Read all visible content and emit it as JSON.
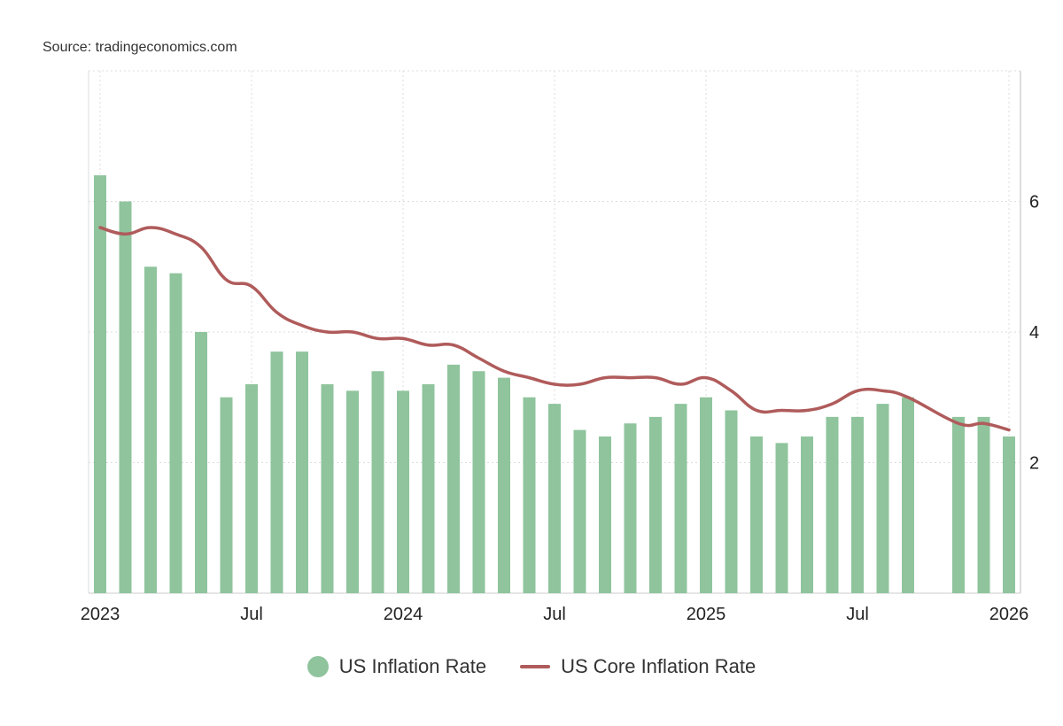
{
  "source": "Source: tradingeconomics.com",
  "chart_data": {
    "type": "bar+line",
    "x": [
      "2023-01",
      "2023-02",
      "2023-03",
      "2023-04",
      "2023-05",
      "2023-06",
      "2023-07",
      "2023-08",
      "2023-09",
      "2023-10",
      "2023-11",
      "2023-12",
      "2024-01",
      "2024-02",
      "2024-03",
      "2024-04",
      "2024-05",
      "2024-06",
      "2024-07",
      "2024-08",
      "2024-09",
      "2024-10",
      "2024-11",
      "2024-12",
      "2025-01",
      "2025-02",
      "2025-03",
      "2025-04",
      "2025-05",
      "2025-06",
      "2025-07",
      "2025-08",
      "2025-09",
      "2025-10",
      "2025-11",
      "2025-12",
      "2026-01"
    ],
    "x_ticks": [
      {
        "index": 0,
        "label": "2023"
      },
      {
        "index": 6,
        "label": "Jul"
      },
      {
        "index": 12,
        "label": "2024"
      },
      {
        "index": 18,
        "label": "Jul"
      },
      {
        "index": 24,
        "label": "2025"
      },
      {
        "index": 30,
        "label": "Jul"
      },
      {
        "index": 36,
        "label": "2026"
      }
    ],
    "y_ticks": [
      2,
      4,
      6
    ],
    "ylim": [
      0,
      8
    ],
    "y_axis_side": "right",
    "grid": true,
    "legend_placement": "bottom-center",
    "series": [
      {
        "name": "US Inflation Rate",
        "type": "bar",
        "color": "#8fc49d",
        "values": [
          6.4,
          6.0,
          5.0,
          4.9,
          4.0,
          3.0,
          3.2,
          3.7,
          3.7,
          3.2,
          3.1,
          3.4,
          3.1,
          3.2,
          3.5,
          3.4,
          3.3,
          3.0,
          2.9,
          2.5,
          2.4,
          2.6,
          2.7,
          2.9,
          3.0,
          2.8,
          2.4,
          2.3,
          2.4,
          2.7,
          2.7,
          2.9,
          3.0,
          null,
          2.7,
          2.7,
          2.4
        ]
      },
      {
        "name": "US Core Inflation Rate",
        "type": "line",
        "color": "#b05b5b",
        "values": [
          5.6,
          5.5,
          5.6,
          5.5,
          5.3,
          4.8,
          4.7,
          4.3,
          4.1,
          4.0,
          4.0,
          3.9,
          3.9,
          3.8,
          3.8,
          3.6,
          3.4,
          3.3,
          3.2,
          3.2,
          3.3,
          3.3,
          3.3,
          3.2,
          3.3,
          3.1,
          2.8,
          2.8,
          2.8,
          2.9,
          3.1,
          3.1,
          3.0,
          null,
          2.6,
          2.6,
          2.5
        ]
      }
    ]
  }
}
